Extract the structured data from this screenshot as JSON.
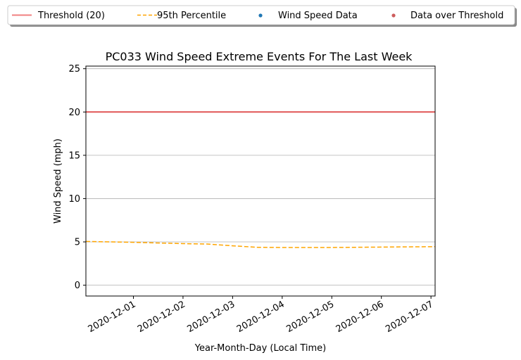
{
  "chart_data": {
    "type": "line",
    "title": "PC033 Wind Speed Extreme Events For The Last Week",
    "xlabel": "Year-Month-Day (Local Time)",
    "ylabel": "Wind Speed (mph)",
    "ylim": [
      -1.25,
      25.3
    ],
    "xlim": [
      "2020-11-30T01:00",
      "2020-12-07T02:00"
    ],
    "x_ticks": [
      "2020-12-01",
      "2020-12-02",
      "2020-12-03",
      "2020-12-04",
      "2020-12-05",
      "2020-12-06",
      "2020-12-07"
    ],
    "y_ticks": [
      0,
      5,
      10,
      15,
      20,
      25
    ],
    "grid": "horizontal",
    "legend_placement": "top, above plot",
    "legend": [
      {
        "label": "Threshold (20)",
        "kind": "line-solid",
        "color": "#f08080"
      },
      {
        "label": "95th Percentile",
        "kind": "line-dashed",
        "color": "#ffa500"
      },
      {
        "label": "Wind Speed Data",
        "kind": "marker",
        "color": "#1f77b4"
      },
      {
        "label": "Data over Threshold",
        "kind": "marker",
        "color": "#cd5c5c"
      }
    ],
    "series": [
      {
        "name": "Threshold (20)",
        "style": "solid",
        "color": "#e05555",
        "x": [
          "2020-11-30T01:00",
          "2020-12-07T02:00"
        ],
        "values": [
          20,
          20
        ]
      },
      {
        "name": "95th Percentile",
        "style": "dashed",
        "color": "#ffa500",
        "x": [
          "2020-11-30T01:00",
          "2020-12-01T00:00",
          "2020-12-02T00:00",
          "2020-12-02T12:00",
          "2020-12-03T00:00",
          "2020-12-03T12:00",
          "2020-12-04T00:00",
          "2020-12-05T00:00",
          "2020-12-06T00:00",
          "2020-12-07T02:00"
        ],
        "values": [
          5.05,
          4.95,
          4.8,
          4.75,
          4.55,
          4.38,
          4.35,
          4.35,
          4.4,
          4.45
        ]
      }
    ]
  }
}
